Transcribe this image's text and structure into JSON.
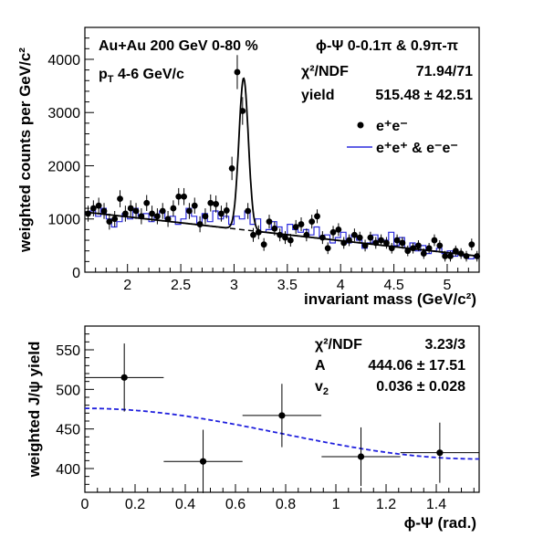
{
  "chart_data": [
    {
      "type": "scatter",
      "xlabel": "invariant mass (GeV/c²)",
      "ylabel": "weighted counts per GeV/c²",
      "xlim": [
        1.6,
        5.3
      ],
      "ylim": [
        0,
        4600
      ],
      "grid": false,
      "legend": "top-right",
      "x_ticks": [
        2,
        2.5,
        3,
        3.5,
        4,
        4.5,
        5
      ],
      "x_tick_labels": [
        "2",
        "2.5",
        "3",
        "3.5",
        "4",
        "4.5",
        "5"
      ],
      "y_ticks": [
        0,
        1000,
        2000,
        3000,
        4000
      ],
      "y_tick_labels": [
        "0",
        "1000",
        "2000",
        "3000",
        "4000"
      ],
      "annotations": {
        "system": "Au+Au 200 GeV 0-80 %",
        "pt_prefix": "p",
        "pt_sub": "T",
        "pt_range": " 4-6 GeV/c",
        "phi_range": "ϕ-Ψ 0-0.1π & 0.9π-π",
        "chi2_label": "χ²/NDF",
        "chi2_value": "71.94/71",
        "yield_label": "yield",
        "yield_value": "515.48 ± 42.51"
      },
      "series": [
        {
          "name": "e⁺e⁻",
          "style": "markers",
          "color": "#000000",
          "x": [
            1.63,
            1.68,
            1.73,
            1.78,
            1.83,
            1.88,
            1.93,
            1.98,
            2.03,
            2.08,
            2.13,
            2.18,
            2.23,
            2.28,
            2.33,
            2.38,
            2.43,
            2.48,
            2.53,
            2.58,
            2.63,
            2.68,
            2.73,
            2.78,
            2.83,
            2.88,
            2.93,
            2.98,
            3.03,
            3.08,
            3.13,
            3.18,
            3.23,
            3.28,
            3.33,
            3.38,
            3.43,
            3.48,
            3.53,
            3.58,
            3.63,
            3.68,
            3.73,
            3.78,
            3.83,
            3.88,
            3.93,
            3.98,
            4.03,
            4.08,
            4.13,
            4.18,
            4.23,
            4.28,
            4.33,
            4.38,
            4.43,
            4.48,
            4.53,
            4.58,
            4.63,
            4.68,
            4.73,
            4.78,
            4.83,
            4.88,
            4.93,
            4.98,
            5.03,
            5.08,
            5.13,
            5.18,
            5.23,
            5.28
          ],
          "y": [
            1100,
            1200,
            1250,
            1150,
            950,
            1000,
            1380,
            1100,
            1200,
            1150,
            1050,
            1300,
            1100,
            1050,
            1150,
            1000,
            1200,
            1420,
            1420,
            1150,
            1250,
            900,
            1050,
            1300,
            1280,
            1100,
            1160,
            1950,
            3760,
            3030,
            1150,
            700,
            750,
            520,
            950,
            820,
            700,
            650,
            600,
            850,
            900,
            700,
            950,
            1050,
            650,
            450,
            750,
            800,
            550,
            600,
            700,
            650,
            500,
            650,
            550,
            600,
            550,
            450,
            600,
            550,
            400,
            450,
            500,
            350,
            450,
            600,
            500,
            300,
            300,
            400,
            350,
            300,
            520,
            300
          ],
          "yerr": [
            150,
            150,
            150,
            150,
            150,
            150,
            160,
            150,
            150,
            150,
            150,
            150,
            150,
            150,
            150,
            150,
            150,
            160,
            160,
            150,
            150,
            150,
            150,
            160,
            160,
            150,
            150,
            220,
            320,
            260,
            150,
            130,
            130,
            120,
            130,
            130,
            120,
            120,
            120,
            130,
            130,
            120,
            130,
            130,
            120,
            110,
            120,
            120,
            110,
            110,
            120,
            110,
            110,
            110,
            110,
            110,
            110,
            100,
            110,
            110,
            100,
            100,
            100,
            100,
            100,
            110,
            100,
            100,
            100,
            100,
            100,
            100,
            110,
            100
          ]
        },
        {
          "name": "e⁺e⁺ & e⁻e⁻",
          "style": "histogram",
          "color": "#2b2bdd",
          "bin_width": 0.05,
          "bin_start": 1.6,
          "values": [
            1100,
            1150,
            1050,
            1200,
            1000,
            850,
            950,
            1100,
            1000,
            1200,
            1050,
            1100,
            950,
            1050,
            1150,
            1000,
            1050,
            900,
            1000,
            1200,
            1050,
            900,
            1100,
            950,
            1150,
            1000,
            1050,
            900,
            1050,
            1000,
            1150,
            900,
            1000,
            750,
            800,
            950,
            850,
            700,
            900,
            800,
            750,
            800,
            700,
            850,
            650,
            700,
            550,
            650,
            750,
            550,
            700,
            600,
            450,
            550,
            700,
            600,
            600,
            750,
            500,
            650,
            450,
            550,
            400,
            500,
            350,
            400,
            450,
            350,
            400,
            300,
            350,
            300,
            250,
            300
          ]
        },
        {
          "name": "",
          "style": "fit-line",
          "color": "#000000",
          "peak_mean": 3.09,
          "peak_sigma": 0.044,
          "peak_height": 2850,
          "background_points": [
            [
              1.6,
              1130
            ],
            [
              5.3,
              300
            ]
          ]
        },
        {
          "name": "",
          "style": "background-line",
          "color": "#000000",
          "points": [
            [
              1.6,
              1130
            ],
            [
              5.3,
              300
            ]
          ]
        }
      ]
    },
    {
      "type": "scatter",
      "xlabel": "ϕ-Ψ (rad.)",
      "ylabel": "weighted J/ψ yield",
      "xlim": [
        0,
        1.5708
      ],
      "ylim": [
        370,
        580
      ],
      "grid": false,
      "x_ticks": [
        0,
        0.2,
        0.4,
        0.6,
        0.8,
        1.0,
        1.2,
        1.4
      ],
      "x_tick_labels": [
        "0",
        "0.2",
        "0.4",
        "0.6",
        "0.8",
        "1",
        "1.2",
        "1.4"
      ],
      "y_ticks": [
        400,
        450,
        500,
        550
      ],
      "y_tick_labels": [
        "400",
        "450",
        "500",
        "550"
      ],
      "annotations": {
        "chi2_label": "χ²/NDF",
        "chi2_value": "3.23/3",
        "a_label": "A",
        "a_value": "444.06 ± 17.51",
        "v2_label": "v",
        "v2_sub": "2",
        "v2_value": "0.036 ± 0.028"
      },
      "series": [
        {
          "name": "",
          "style": "markers",
          "color": "#000000",
          "x": [
            0.157,
            0.471,
            0.785,
            1.1,
            1.414
          ],
          "y": [
            515,
            409,
            467,
            415,
            420
          ],
          "xerr": [
            0.157,
            0.157,
            0.157,
            0.157,
            0.157
          ],
          "yerr": [
            43,
            40,
            40,
            37,
            38
          ]
        },
        {
          "name": "",
          "style": "dashed-fit",
          "color": "#1f1fdd",
          "function": "A*(1+2*v2*cos(2x))",
          "A": 444.06,
          "v2": 0.036
        }
      ]
    }
  ]
}
